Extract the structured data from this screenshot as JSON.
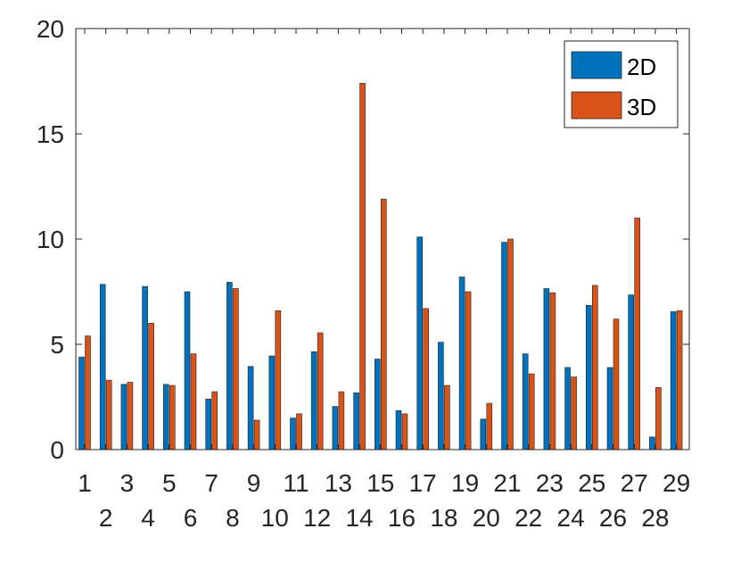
{
  "chart_data": {
    "type": "bar",
    "categories": [
      "1",
      "2",
      "3",
      "4",
      "5",
      "6",
      "7",
      "8",
      "9",
      "10",
      "11",
      "12",
      "13",
      "14",
      "15",
      "16",
      "17",
      "18",
      "19",
      "20",
      "21",
      "22",
      "23",
      "24",
      "25",
      "26",
      "27",
      "28",
      "29"
    ],
    "series": [
      {
        "name": "2D",
        "color": "#0072BD",
        "values": [
          4.4,
          7.85,
          3.1,
          7.75,
          3.1,
          7.5,
          2.4,
          7.95,
          3.95,
          4.45,
          1.5,
          4.65,
          2.05,
          2.7,
          4.3,
          1.85,
          10.1,
          5.1,
          8.2,
          1.45,
          9.85,
          4.55,
          7.65,
          3.9,
          6.85,
          3.9,
          7.35,
          0.6,
          6.55
        ]
      },
      {
        "name": "3D",
        "color": "#D95319",
        "values": [
          5.4,
          3.3,
          3.2,
          6.0,
          3.05,
          4.55,
          2.75,
          7.65,
          1.4,
          6.6,
          1.7,
          5.55,
          2.75,
          17.4,
          11.9,
          1.7,
          6.7,
          3.05,
          7.5,
          2.2,
          10.0,
          3.6,
          7.45,
          3.45,
          7.8,
          6.2,
          11.0,
          2.95,
          6.6
        ]
      }
    ],
    "title": "",
    "xlabel": "",
    "ylabel": "",
    "ylim": [
      0,
      20
    ],
    "yticks": [
      0,
      5,
      10,
      15,
      20
    ],
    "grid": false,
    "legend_position": "top-right"
  }
}
